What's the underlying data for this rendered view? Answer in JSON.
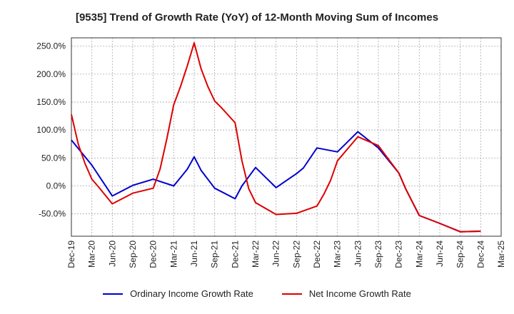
{
  "chart_data": {
    "type": "line",
    "title": "[9535]  Trend of Growth Rate (YoY) of 12-Month Moving Sum of Incomes",
    "xlabel": "",
    "ylabel": "",
    "x_ticks": [
      "Dec-19",
      "Mar-20",
      "Jun-20",
      "Sep-20",
      "Dec-20",
      "Mar-21",
      "Jun-21",
      "Sep-21",
      "Dec-21",
      "Mar-22",
      "Jun-22",
      "Sep-22",
      "Dec-22",
      "Mar-23",
      "Jun-23",
      "Sep-23",
      "Dec-23",
      "Mar-24",
      "Jun-24",
      "Sep-24",
      "Dec-24",
      "Mar-25"
    ],
    "y_ticks": [
      "250.0%",
      "200.0%",
      "150.0%",
      "100.0%",
      "50.0%",
      "0.0%",
      "-50.0%"
    ],
    "y_tick_values": [
      250,
      200,
      150,
      100,
      50,
      0,
      -50
    ],
    "ylim": [
      -90,
      265
    ],
    "grid": true,
    "legend_position": "bottom",
    "series": [
      {
        "name": "Ordinary Income Growth Rate",
        "color": "#0000cc",
        "x": [
          "Dec-19",
          "Mar-20",
          "Jun-20",
          "Sep-20",
          "Dec-20",
          "Mar-21",
          "Apr-21",
          "May-21",
          "Jun-21",
          "Jul-21",
          "Sep-21",
          "Dec-21",
          "Jan-22",
          "Mar-22",
          "Jun-22",
          "Sep-22",
          "Oct-22",
          "Dec-22",
          "Mar-23",
          "Jun-23",
          "Sep-23",
          "Dec-23",
          "Jan-24",
          "Mar-24",
          "Jun-24",
          "Sep-24",
          "Dec-24"
        ],
        "values": [
          82,
          37,
          -18,
          1,
          12,
          0,
          15,
          30,
          52,
          28,
          -4,
          -23,
          0,
          33,
          -3,
          22,
          32,
          68,
          61,
          97,
          68,
          23,
          -5,
          -53,
          -67,
          -82,
          -81
        ]
      },
      {
        "name": "Net Income Growth Rate",
        "color": "#dd0000",
        "x": [
          "Dec-19",
          "Jan-20",
          "Feb-20",
          "Mar-20",
          "Apr-20",
          "Jun-20",
          "Sep-20",
          "Dec-20",
          "Jan-21",
          "Feb-21",
          "Mar-21",
          "Apr-21",
          "May-21",
          "Jun-21",
          "Jul-21",
          "Aug-21",
          "Sep-21",
          "Oct-21",
          "Dec-21",
          "Jan-22",
          "Feb-22",
          "Mar-22",
          "Jun-22",
          "Sep-22",
          "Dec-22",
          "Jan-23",
          "Feb-23",
          "Mar-23",
          "Jun-23",
          "Sep-23",
          "Dec-23",
          "Jan-24",
          "Mar-24",
          "Jun-24",
          "Sep-24",
          "Dec-24"
        ],
        "values": [
          128,
          75,
          40,
          12,
          -2,
          -32,
          -13,
          -4,
          30,
          85,
          145,
          178,
          215,
          256,
          210,
          178,
          152,
          140,
          113,
          45,
          -5,
          -30,
          -51,
          -49,
          -36,
          -15,
          10,
          45,
          88,
          72,
          23,
          -5,
          -53,
          -67,
          -82,
          -81
        ]
      }
    ]
  }
}
